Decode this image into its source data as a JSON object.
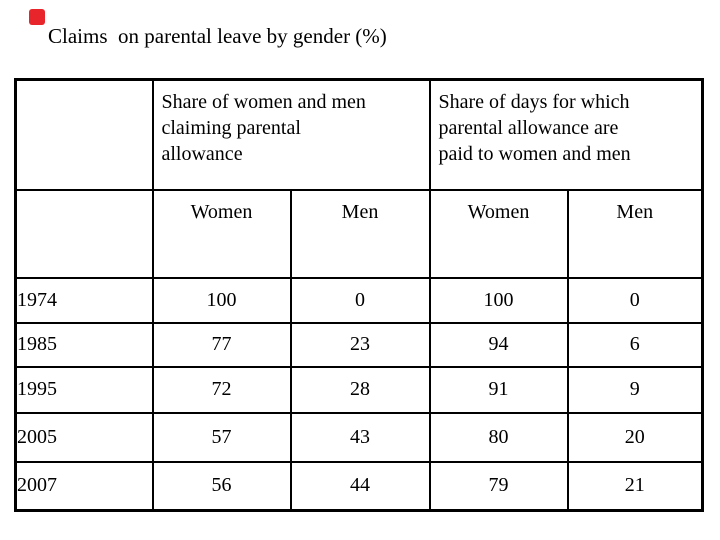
{
  "slide": {
    "title": "Claims  on parental leave by gender (%)",
    "accent_square_color": "#e8252a",
    "background_color": "#ffffff",
    "text_color": "#000000",
    "border_color": "#000000"
  },
  "chart_data": {
    "type": "table",
    "title": "Claims on parental leave by gender (%)",
    "unit": "%",
    "column_groups": [
      {
        "label": "Share of women and men claiming parental allowance",
        "span": 2,
        "lines": [
          "Share of women and men",
          "claiming parental",
          "allowance"
        ]
      },
      {
        "label": "Share of days for which parental allowance are paid to women and men",
        "span": 2,
        "lines": [
          "Share of days for which",
          "parental allowance are",
          "paid to women and men"
        ]
      }
    ],
    "sub_headers": [
      "Women",
      "Men",
      "Women",
      "Men"
    ],
    "rows": [
      {
        "year": "1974",
        "values": [
          "100",
          "0",
          "100",
          "0"
        ]
      },
      {
        "year": "1985",
        "values": [
          "77",
          "23",
          "94",
          "6"
        ]
      },
      {
        "year": "1995",
        "values": [
          "72",
          "28",
          "91",
          "9"
        ]
      },
      {
        "year": "2005",
        "values": [
          "57",
          "43",
          "80",
          "20"
        ]
      },
      {
        "year": "2007",
        "values": [
          "56",
          "44",
          "79",
          "21"
        ]
      }
    ]
  }
}
